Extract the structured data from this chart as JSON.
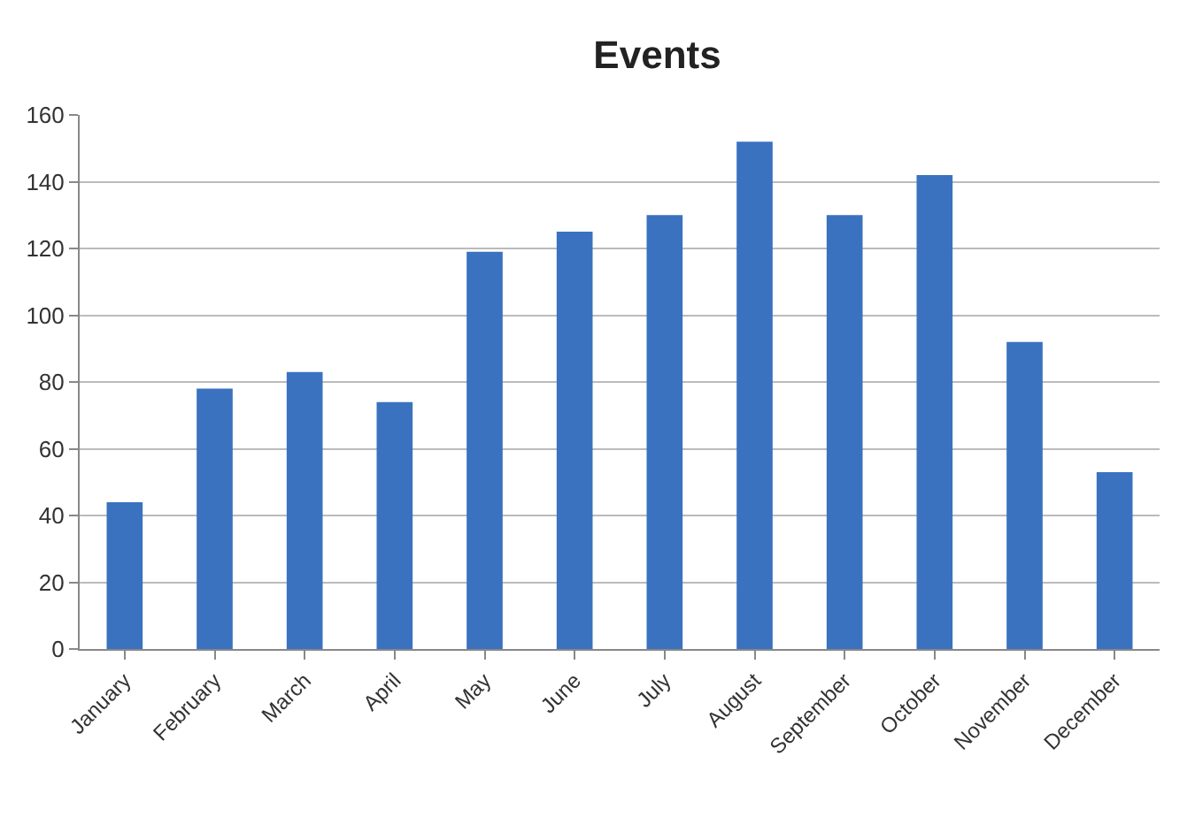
{
  "chart_data": {
    "type": "bar",
    "title": "Events",
    "categories": [
      "January",
      "February",
      "March",
      "April",
      "May",
      "June",
      "July",
      "August",
      "September",
      "October",
      "November",
      "December"
    ],
    "values": [
      44,
      78,
      83,
      74,
      119,
      125,
      130,
      152,
      130,
      142,
      92,
      53
    ],
    "color": "#3a72c0",
    "ylim": [
      0,
      160
    ],
    "yticks": [
      0,
      20,
      40,
      60,
      80,
      100,
      120,
      140,
      160
    ],
    "grid": "y"
  }
}
